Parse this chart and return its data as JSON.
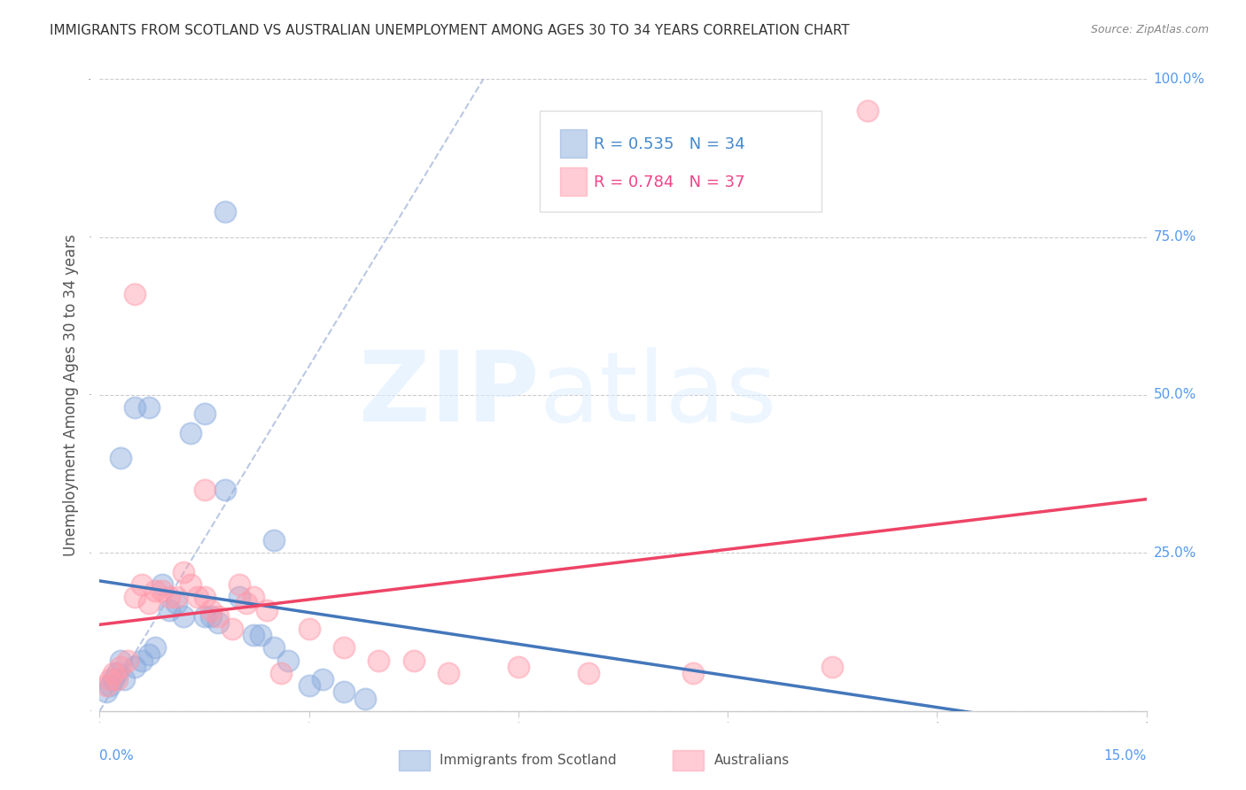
{
  "title": "IMMIGRANTS FROM SCOTLAND VS AUSTRALIAN UNEMPLOYMENT AMONG AGES 30 TO 34 YEARS CORRELATION CHART",
  "source": "Source: ZipAtlas.com",
  "ylabel": "Unemployment Among Ages 30 to 34 years",
  "x_min": 0.0,
  "x_max": 15.0,
  "y_min": 0.0,
  "y_max": 100.0,
  "color_blue": "#88AADD",
  "color_pink": "#FF99AA",
  "color_blue_line": "#4477BB",
  "color_pink_line": "#EE4466",
  "color_blue_dash": "#AABBDD",
  "background": "#FFFFFF",
  "watermark_zip": "ZIP",
  "watermark_atlas": "atlas",
  "scotland_x": [
    0.5,
    1.8,
    0.3,
    0.7,
    1.5,
    1.8,
    2.5,
    0.1,
    0.15,
    0.2,
    0.25,
    0.3,
    0.35,
    0.5,
    0.6,
    0.7,
    0.8,
    0.9,
    1.0,
    1.1,
    1.2,
    1.3,
    1.5,
    1.6,
    1.7,
    2.0,
    2.2,
    2.3,
    2.5,
    2.7,
    3.0,
    3.2,
    3.5,
    3.8
  ],
  "scotland_y": [
    48.0,
    79.0,
    40.0,
    48.0,
    47.0,
    35.0,
    27.0,
    3.0,
    4.0,
    5.0,
    6.0,
    8.0,
    5.0,
    7.0,
    8.0,
    9.0,
    10.0,
    20.0,
    16.0,
    17.0,
    15.0,
    44.0,
    15.0,
    15.0,
    14.0,
    18.0,
    12.0,
    12.0,
    10.0,
    8.0,
    4.0,
    5.0,
    3.0,
    2.0
  ],
  "australian_x": [
    0.5,
    1.5,
    0.1,
    0.15,
    0.2,
    0.25,
    0.3,
    0.4,
    0.5,
    0.6,
    0.7,
    0.8,
    0.9,
    1.0,
    1.1,
    1.2,
    1.3,
    1.4,
    1.5,
    1.6,
    1.7,
    1.9,
    2.0,
    2.1,
    2.2,
    2.4,
    2.6,
    3.0,
    3.5,
    4.0,
    4.5,
    5.0,
    6.0,
    7.0,
    8.5,
    10.5,
    11.0
  ],
  "australian_y": [
    66.0,
    35.0,
    4.0,
    5.0,
    6.0,
    5.0,
    7.0,
    8.0,
    18.0,
    20.0,
    17.0,
    19.0,
    19.0,
    18.0,
    18.0,
    22.0,
    20.0,
    18.0,
    18.0,
    16.0,
    15.0,
    13.0,
    20.0,
    17.0,
    18.0,
    16.0,
    6.0,
    13.0,
    10.0,
    8.0,
    8.0,
    6.0,
    7.0,
    6.0,
    6.0,
    7.0,
    95.0
  ]
}
